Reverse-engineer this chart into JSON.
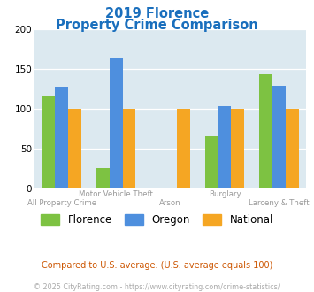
{
  "title_line1": "2019 Florence",
  "title_line2": "Property Crime Comparison",
  "title_color": "#1a6fbd",
  "categories": [
    "All Property Crime",
    "Motor Vehicle Theft",
    "Arson",
    "Burglary",
    "Larceny & Theft"
  ],
  "series": {
    "Florence": [
      117,
      25,
      0,
      65,
      143
    ],
    "Oregon": [
      128,
      163,
      0,
      103,
      129
    ],
    "National": [
      100,
      100,
      100,
      100,
      100
    ]
  },
  "colors": {
    "Florence": "#7dc242",
    "Oregon": "#4e8fde",
    "National": "#f5a623"
  },
  "ylim": [
    0,
    200
  ],
  "yticks": [
    0,
    50,
    100,
    150,
    200
  ],
  "plot_bg": "#dce9f0",
  "legend_labels": [
    "Florence",
    "Oregon",
    "National"
  ],
  "xlabel_top": [
    "",
    "Motor Vehicle Theft",
    "",
    "Burglary",
    ""
  ],
  "xlabel_bottom": [
    "All Property Crime",
    "",
    "Arson",
    "",
    "Larceny & Theft"
  ],
  "footnote1": "Compared to U.S. average. (U.S. average equals 100)",
  "footnote2": "© 2025 CityRating.com - https://www.cityrating.com/crime-statistics/",
  "footnote1_color": "#cc5500",
  "footnote2_color": "#aaaaaa"
}
